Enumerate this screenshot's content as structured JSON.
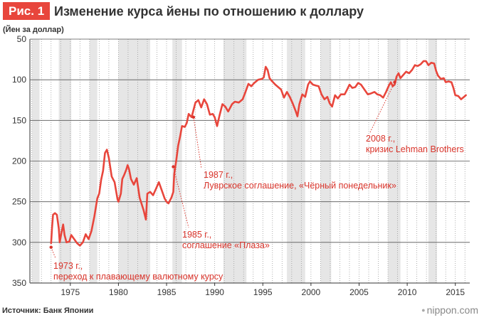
{
  "figure": {
    "label": "Рис. 1",
    "title": "Изменение курса йены по отношению к доллару"
  },
  "footer": {
    "source": "Источник: Банк Японии",
    "brand": "nippon.com"
  },
  "colors": {
    "accent": "#e8463c",
    "line": "#e8463c",
    "annotation": "#d9342b",
    "shade": "#e6e6e6"
  },
  "chart_data": {
    "type": "line",
    "title": "Изменение курса йены по отношению к доллару",
    "ylabel": "(Йен за доллар)",
    "xlabel": "",
    "y_inverted": true,
    "ylim": [
      50,
      350
    ],
    "xlim": [
      1970.8,
      2016.5
    ],
    "y_ticks": [
      50,
      100,
      150,
      200,
      250,
      300,
      350
    ],
    "x_ticks": [
      1975,
      1980,
      1985,
      1990,
      1995,
      2000,
      2005,
      2010,
      2015
    ],
    "grid": "dotted vertical lines at each year boundary",
    "shaded_periods": [
      [
        1971.0,
        1971.8
      ],
      [
        1973.8,
        1975.1
      ],
      [
        1977.0,
        1977.8
      ],
      [
        1980.0,
        1983.3
      ],
      [
        1985.6,
        1986.6
      ],
      [
        1990.9,
        1993.3
      ],
      [
        1997.5,
        1999.4
      ],
      [
        2001.0,
        2002.1
      ],
      [
        2008.0,
        2009.3
      ],
      [
        2012.2,
        2013.1
      ]
    ],
    "series": [
      {
        "points": [
          [
            1973.0,
            301
          ],
          [
            1973.1,
            282
          ],
          [
            1973.2,
            266
          ],
          [
            1973.4,
            264
          ],
          [
            1973.6,
            266
          ],
          [
            1973.8,
            283
          ],
          [
            1973.9,
            300
          ],
          [
            1974.1,
            287
          ],
          [
            1974.25,
            278
          ],
          [
            1974.4,
            291
          ],
          [
            1974.6,
            300
          ],
          [
            1974.9,
            299
          ],
          [
            1975.1,
            291
          ],
          [
            1975.4,
            296
          ],
          [
            1975.7,
            301
          ],
          [
            1976.0,
            304
          ],
          [
            1976.3,
            300
          ],
          [
            1976.6,
            290
          ],
          [
            1976.9,
            296
          ],
          [
            1977.2,
            286
          ],
          [
            1977.5,
            268
          ],
          [
            1977.8,
            246
          ],
          [
            1978.0,
            240
          ],
          [
            1978.2,
            223
          ],
          [
            1978.4,
            212
          ],
          [
            1978.6,
            190
          ],
          [
            1978.8,
            186
          ],
          [
            1979.0,
            196
          ],
          [
            1979.3,
            219
          ],
          [
            1979.6,
            226
          ],
          [
            1979.9,
            247
          ],
          [
            1980.0,
            250
          ],
          [
            1980.25,
            240
          ],
          [
            1980.4,
            222
          ],
          [
            1980.6,
            217
          ],
          [
            1980.8,
            211
          ],
          [
            1980.95,
            205
          ],
          [
            1981.1,
            210
          ],
          [
            1981.3,
            222
          ],
          [
            1981.6,
            229
          ],
          [
            1981.9,
            221
          ],
          [
            1982.2,
            245
          ],
          [
            1982.6,
            260
          ],
          [
            1982.85,
            272
          ],
          [
            1983.0,
            240
          ],
          [
            1983.3,
            238
          ],
          [
            1983.6,
            242
          ],
          [
            1983.9,
            234
          ],
          [
            1984.2,
            226
          ],
          [
            1984.5,
            236
          ],
          [
            1984.8,
            246
          ],
          [
            1985.0,
            250
          ],
          [
            1985.2,
            252
          ],
          [
            1985.5,
            245
          ],
          [
            1985.7,
            238
          ],
          [
            1985.8,
            216
          ],
          [
            1986.0,
            200
          ],
          [
            1986.2,
            181
          ],
          [
            1986.4,
            170
          ],
          [
            1986.6,
            157
          ],
          [
            1986.9,
            158
          ],
          [
            1987.1,
            153
          ],
          [
            1987.3,
            142
          ],
          [
            1987.6,
            146
          ],
          [
            1987.8,
            137
          ],
          [
            1988.0,
            128
          ],
          [
            1988.3,
            125
          ],
          [
            1988.6,
            134
          ],
          [
            1988.9,
            124
          ],
          [
            1989.2,
            130
          ],
          [
            1989.5,
            143
          ],
          [
            1989.8,
            142
          ],
          [
            1990.0,
            146
          ],
          [
            1990.25,
            157
          ],
          [
            1990.5,
            144
          ],
          [
            1990.8,
            130
          ],
          [
            1991.1,
            133
          ],
          [
            1991.4,
            139
          ],
          [
            1991.8,
            130
          ],
          [
            1992.1,
            127
          ],
          [
            1992.5,
            128
          ],
          [
            1992.9,
            124
          ],
          [
            1993.2,
            115
          ],
          [
            1993.5,
            105
          ],
          [
            1993.8,
            108
          ],
          [
            1994.1,
            104
          ],
          [
            1994.5,
            100
          ],
          [
            1994.9,
            99
          ],
          [
            1995.1,
            97
          ],
          [
            1995.3,
            84
          ],
          [
            1995.5,
            88
          ],
          [
            1995.7,
            98
          ],
          [
            1995.9,
            101
          ],
          [
            1996.3,
            106
          ],
          [
            1996.7,
            110
          ],
          [
            1996.9,
            112
          ],
          [
            1997.2,
            122
          ],
          [
            1997.5,
            115
          ],
          [
            1997.8,
            121
          ],
          [
            1998.1,
            129
          ],
          [
            1998.4,
            138
          ],
          [
            1998.6,
            145
          ],
          [
            1998.8,
            130
          ],
          [
            1999.1,
            118
          ],
          [
            1999.4,
            121
          ],
          [
            1999.7,
            106
          ],
          [
            1999.9,
            102
          ],
          [
            2000.2,
            106
          ],
          [
            2000.5,
            107
          ],
          [
            2000.8,
            108
          ],
          [
            2001.1,
            118
          ],
          [
            2001.4,
            124
          ],
          [
            2001.7,
            121
          ],
          [
            2001.95,
            129
          ],
          [
            2002.2,
            133
          ],
          [
            2002.5,
            119
          ],
          [
            2002.8,
            123
          ],
          [
            2003.1,
            118
          ],
          [
            2003.5,
            118
          ],
          [
            2003.8,
            111
          ],
          [
            2004.0,
            106
          ],
          [
            2004.3,
            110
          ],
          [
            2004.6,
            109
          ],
          [
            2004.9,
            104
          ],
          [
            2005.2,
            106
          ],
          [
            2005.5,
            111
          ],
          [
            2005.9,
            118
          ],
          [
            2006.2,
            117
          ],
          [
            2006.6,
            115
          ],
          [
            2006.9,
            118
          ],
          [
            2007.2,
            119
          ],
          [
            2007.5,
            122
          ],
          [
            2007.8,
            115
          ],
          [
            2008.1,
            107
          ],
          [
            2008.3,
            103
          ],
          [
            2008.5,
            108
          ],
          [
            2008.7,
            106
          ],
          [
            2008.9,
            96
          ],
          [
            2009.1,
            92
          ],
          [
            2009.3,
            98
          ],
          [
            2009.6,
            94
          ],
          [
            2009.9,
            90
          ],
          [
            2010.2,
            92
          ],
          [
            2010.5,
            88
          ],
          [
            2010.8,
            82
          ],
          [
            2011.1,
            83
          ],
          [
            2011.4,
            81
          ],
          [
            2011.7,
            77
          ],
          [
            2011.95,
            77
          ],
          [
            2012.2,
            82
          ],
          [
            2012.5,
            79
          ],
          [
            2012.8,
            80
          ],
          [
            2013.0,
            89
          ],
          [
            2013.2,
            95
          ],
          [
            2013.5,
            99
          ],
          [
            2013.8,
            98
          ],
          [
            2014.0,
            103
          ],
          [
            2014.3,
            102
          ],
          [
            2014.6,
            103
          ],
          [
            2014.8,
            110
          ],
          [
            2015.0,
            119
          ],
          [
            2015.3,
            120
          ],
          [
            2015.6,
            124
          ],
          [
            2015.9,
            121
          ],
          [
            2016.1,
            119
          ]
        ]
      }
    ],
    "annotations": [
      {
        "x": 1973.0,
        "y": 306,
        "lines": [
          "1973 г.,",
          "переход к плавающему валютному курсу"
        ]
      },
      {
        "x": 1985.7,
        "y": 207,
        "lines": [
          "1985 г.,",
          "соглашение «Плаза»"
        ]
      },
      {
        "x": 1987.8,
        "y": 146,
        "lines": [
          "1987 г.,",
          "Луврское соглашение, «Чёрный понедельник»"
        ]
      },
      {
        "x": 2008.7,
        "y": 103,
        "lines": [
          "2008 г.,",
          "кризис Lehman Brothers"
        ]
      }
    ]
  }
}
